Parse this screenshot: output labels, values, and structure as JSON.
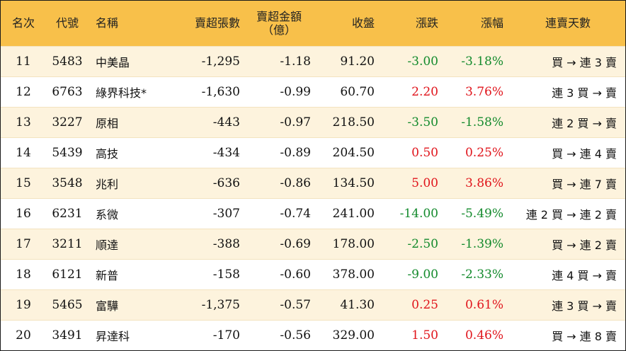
{
  "colors": {
    "header_bg": "#f8c04a",
    "row_alt_bg": "#fdf3dd",
    "up": "#e0141b",
    "down": "#138a2c"
  },
  "headers": {
    "rank": "名次",
    "code": "代號",
    "name": "名稱",
    "net_sell_lots": "賣超張數",
    "net_sell_amount_line1": "賣超金額",
    "net_sell_amount_line2": "（億）",
    "close": "收盤",
    "change": "漲跌",
    "change_pct": "漲幅",
    "streak": "連賣天數"
  },
  "rows": [
    {
      "rank": "11",
      "code": "5483",
      "name": "中美晶",
      "lots": "-1,295",
      "amount": "-1.18",
      "close": "91.20",
      "change": "-3.00",
      "pct": "-3.18%",
      "dir": "down",
      "streak": "買 → 連 3 賣"
    },
    {
      "rank": "12",
      "code": "6763",
      "name": "綠界科技*",
      "lots": "-1,630",
      "amount": "-0.99",
      "close": "60.70",
      "change": "2.20",
      "pct": "3.76%",
      "dir": "up",
      "streak": "連 3 買 → 賣"
    },
    {
      "rank": "13",
      "code": "3227",
      "name": "原相",
      "lots": "-443",
      "amount": "-0.97",
      "close": "218.50",
      "change": "-3.50",
      "pct": "-1.58%",
      "dir": "down",
      "streak": "連 2 買 → 賣"
    },
    {
      "rank": "14",
      "code": "5439",
      "name": "高技",
      "lots": "-434",
      "amount": "-0.89",
      "close": "204.50",
      "change": "0.50",
      "pct": "0.25%",
      "dir": "up",
      "streak": "買 → 連 4 賣"
    },
    {
      "rank": "15",
      "code": "3548",
      "name": "兆利",
      "lots": "-636",
      "amount": "-0.86",
      "close": "134.50",
      "change": "5.00",
      "pct": "3.86%",
      "dir": "up",
      "streak": "買 → 連 7 賣"
    },
    {
      "rank": "16",
      "code": "6231",
      "name": "系微",
      "lots": "-307",
      "amount": "-0.74",
      "close": "241.00",
      "change": "-14.00",
      "pct": "-5.49%",
      "dir": "down",
      "streak": "連 2 買 → 連 2 賣"
    },
    {
      "rank": "17",
      "code": "3211",
      "name": "順達",
      "lots": "-388",
      "amount": "-0.69",
      "close": "178.00",
      "change": "-2.50",
      "pct": "-1.39%",
      "dir": "down",
      "streak": "買 → 連 2 賣"
    },
    {
      "rank": "18",
      "code": "6121",
      "name": "新普",
      "lots": "-158",
      "amount": "-0.60",
      "close": "378.00",
      "change": "-9.00",
      "pct": "-2.33%",
      "dir": "down",
      "streak": "連 4 買 → 賣"
    },
    {
      "rank": "19",
      "code": "5465",
      "name": "富驊",
      "lots": "-1,375",
      "amount": "-0.57",
      "close": "41.30",
      "change": "0.25",
      "pct": "0.61%",
      "dir": "up",
      "streak": "連 3 買 → 賣"
    },
    {
      "rank": "20",
      "code": "3491",
      "name": "昇達科",
      "lots": "-170",
      "amount": "-0.56",
      "close": "329.00",
      "change": "1.50",
      "pct": "0.46%",
      "dir": "up",
      "streak": "買 → 連 8 賣"
    }
  ]
}
